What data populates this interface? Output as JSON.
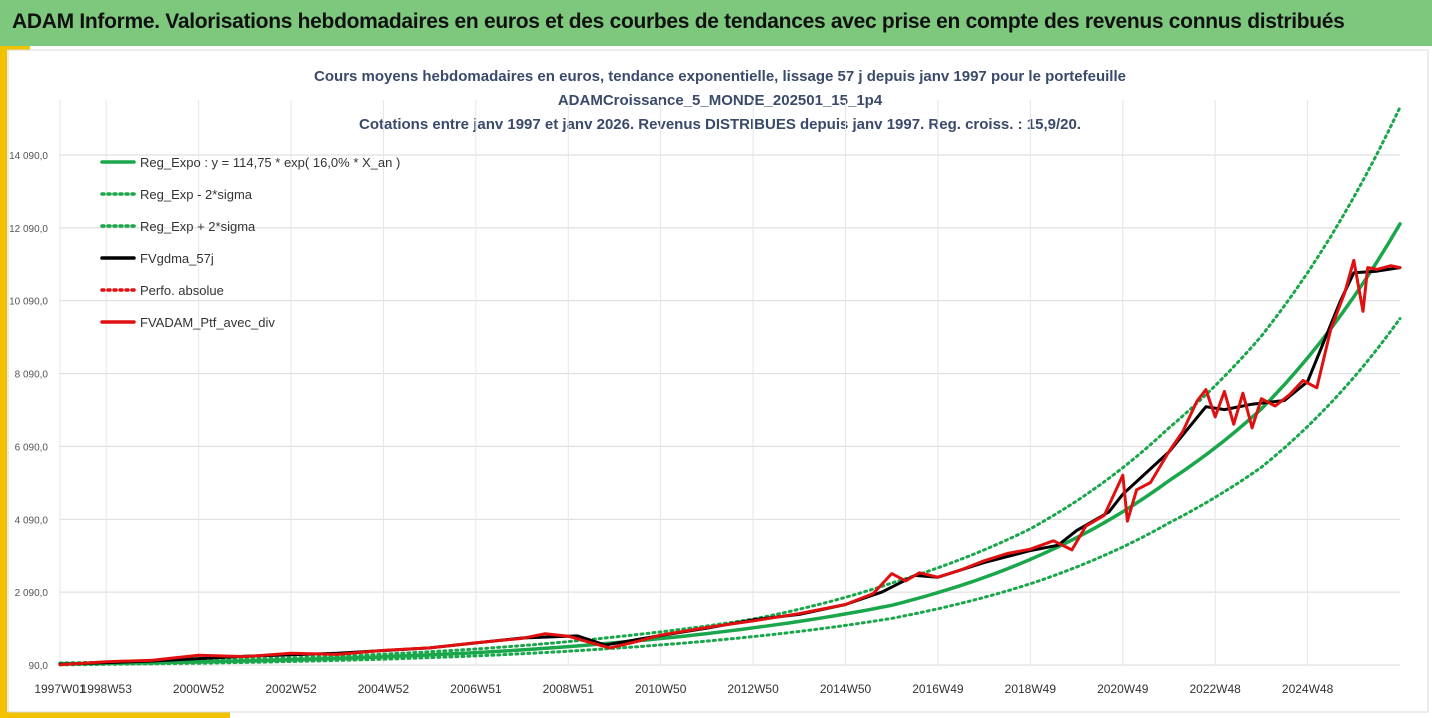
{
  "header": {
    "title": "ADAM Informe. Valorisations hebdomadaires en euros et des courbes de tendances avec prise en compte des revenus connus distribués"
  },
  "colors": {
    "header_bg": "#7ec87e",
    "accent": "#f2c200",
    "reg_expo": "#1aa64a",
    "fvgdma": "#000000",
    "perfo": "#e01010"
  },
  "chart_data": {
    "type": "line",
    "title_lines": [
      "Cours moyens hebdomadaires  en euros, tendance exponentielle, lissage 57 j depuis janv 1997 pour le portefeuille",
      "ADAMCroissance_5_MONDE_202501_15_1p4",
      "Cotations entre janv 1997 et janv 2026. Revenus DISTRIBUES depuis janv 1997. Reg. croiss. : 15,9/20."
    ],
    "xlabel": "",
    "ylabel": "",
    "y_ticks": [
      "90,0",
      "2 090,0",
      "4 090,0",
      "6 090,0",
      "8 090,0",
      "10 090,0",
      "12 090,0",
      "14 090,0"
    ],
    "ylim": [
      90,
      15600
    ],
    "x_ticks": [
      "1997W01",
      "1998W53",
      "2000W52",
      "2002W52",
      "2004W52",
      "2006W51",
      "2008W51",
      "2010W50",
      "2012W50",
      "2014W50",
      "2016W49",
      "2018W49",
      "2020W49",
      "2022W48",
      "2024W48"
    ],
    "x_range": [
      1997.0,
      2026.0
    ],
    "grid": true,
    "legend_position": "top-left",
    "legend": [
      {
        "label": "Reg_Expo : y = 114,75 * exp( 16,0% *  X_an )",
        "style": "solid",
        "color": "#1aa64a"
      },
      {
        "label": "Reg_Exp - 2*sigma",
        "style": "dotted",
        "color": "#1aa64a"
      },
      {
        "label": "Reg_Exp + 2*sigma",
        "style": "dotted",
        "color": "#1aa64a"
      },
      {
        "label": "FVgdma_57j",
        "style": "solid",
        "color": "#000000"
      },
      {
        "label": "Perfo. absolue",
        "style": "dotted",
        "color": "#e01010"
      },
      {
        "label": "FVADAM_Ptf_avec_div",
        "style": "solid",
        "color": "#e01010"
      }
    ],
    "series": [
      {
        "name": "Reg_Expo",
        "x": [
          1997,
          2000,
          2003,
          2006,
          2009,
          2012,
          2015,
          2018,
          2021,
          2023,
          2026
        ],
        "values": [
          118,
          175,
          270,
          430,
          700,
          1110,
          1730,
          2990,
          5150,
          7120,
          12200
        ]
      },
      {
        "name": "Reg_Exp - 2*sigma",
        "x": [
          1997,
          2000,
          2003,
          2006,
          2009,
          2012,
          2015,
          2018,
          2021,
          2023,
          2026
        ],
        "values": [
          95,
          140,
          215,
          340,
          550,
          870,
          1370,
          2320,
          3990,
          5520,
          9600
        ]
      },
      {
        "name": "Reg_Exp + 2*sigma",
        "x": [
          1997,
          2000,
          2003,
          2006,
          2009,
          2012,
          2015,
          2018,
          2021,
          2023,
          2026
        ],
        "values": [
          145,
          215,
          330,
          530,
          860,
          1350,
          2340,
          3830,
          6600,
          9120,
          15400
        ]
      },
      {
        "name": "FVgdma_57j",
        "x": [
          1997,
          1999,
          2001,
          2003,
          2005,
          2007,
          2008.2,
          2008.8,
          2010,
          2011,
          2012,
          2013,
          2014,
          2014.8,
          2015.5,
          2016,
          2017,
          2018,
          2018.6,
          2019,
          2019.7,
          2020,
          2021,
          2021.8,
          2022.2,
          2022.8,
          2023.5,
          2024,
          2024.7,
          2025,
          2025.5,
          2026
        ],
        "values": [
          110,
          200,
          330,
          410,
          560,
          830,
          890,
          640,
          900,
          1100,
          1330,
          1480,
          1750,
          2100,
          2550,
          2500,
          2900,
          3230,
          3380,
          3780,
          4290,
          4780,
          5940,
          7180,
          7100,
          7250,
          7350,
          7870,
          10050,
          10860,
          10900,
          11000
        ]
      },
      {
        "name": "FVADAM_Ptf_avec_div",
        "x": [
          1997,
          1998,
          1999,
          2000,
          2001,
          2002,
          2003,
          2004,
          2005,
          2006,
          2007,
          2007.5,
          2008,
          2008.5,
          2008.9,
          2009.5,
          2010,
          2011,
          2012,
          2013,
          2014,
          2014.6,
          2015,
          2015.3,
          2015.6,
          2016,
          2016.5,
          2017,
          2017.5,
          2018,
          2018.5,
          2018.9,
          2019.2,
          2019.6,
          2020.0,
          2020.1,
          2020.3,
          2020.6,
          2021,
          2021.3,
          2021.6,
          2021.8,
          2022.0,
          2022.2,
          2022.4,
          2022.6,
          2022.8,
          2023,
          2023.3,
          2023.6,
          2023.9,
          2024.2,
          2024.5,
          2024.8,
          2025.0,
          2025.1,
          2025.2,
          2025.3,
          2025.5,
          2025.8,
          2026
        ],
        "values": [
          95,
          180,
          220,
          360,
          320,
          410,
          380,
          490,
          560,
          700,
          820,
          950,
          880,
          700,
          560,
          740,
          910,
          1120,
          1300,
          1500,
          1750,
          2050,
          2600,
          2400,
          2620,
          2500,
          2700,
          2950,
          3150,
          3270,
          3500,
          3250,
          3900,
          4200,
          5300,
          4040,
          4900,
          5100,
          5950,
          6500,
          7320,
          7650,
          6900,
          7600,
          6700,
          7550,
          6600,
          7400,
          7200,
          7500,
          7900,
          7700,
          9300,
          10300,
          11200,
          10500,
          9800,
          11000,
          10950,
          11050,
          11000
        ]
      }
    ]
  }
}
